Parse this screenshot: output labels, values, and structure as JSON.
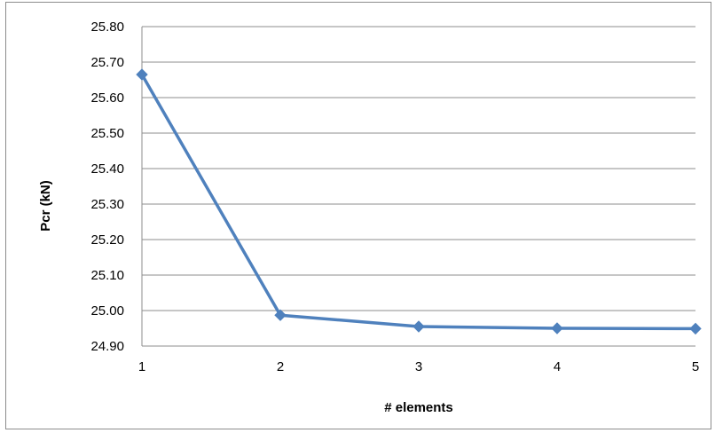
{
  "chart_data": {
    "type": "line",
    "title": "",
    "xlabel": "# elements",
    "ylabel": "Pcr (kN)",
    "x": [
      1,
      2,
      3,
      4,
      5
    ],
    "x_tick_labels": [
      "1",
      "2",
      "3",
      "4",
      "5"
    ],
    "y_tick_labels": [
      "24.90",
      "25.00",
      "25.10",
      "25.20",
      "25.30",
      "25.40",
      "25.50",
      "25.60",
      "25.70",
      "25.80"
    ],
    "ylim": [
      24.9,
      25.8
    ],
    "grid": true,
    "legend": "none",
    "series": [
      {
        "values": [
          25.665,
          24.987,
          24.955,
          24.95,
          24.949
        ],
        "color": "#4f81bd",
        "marker": "diamond"
      }
    ]
  }
}
